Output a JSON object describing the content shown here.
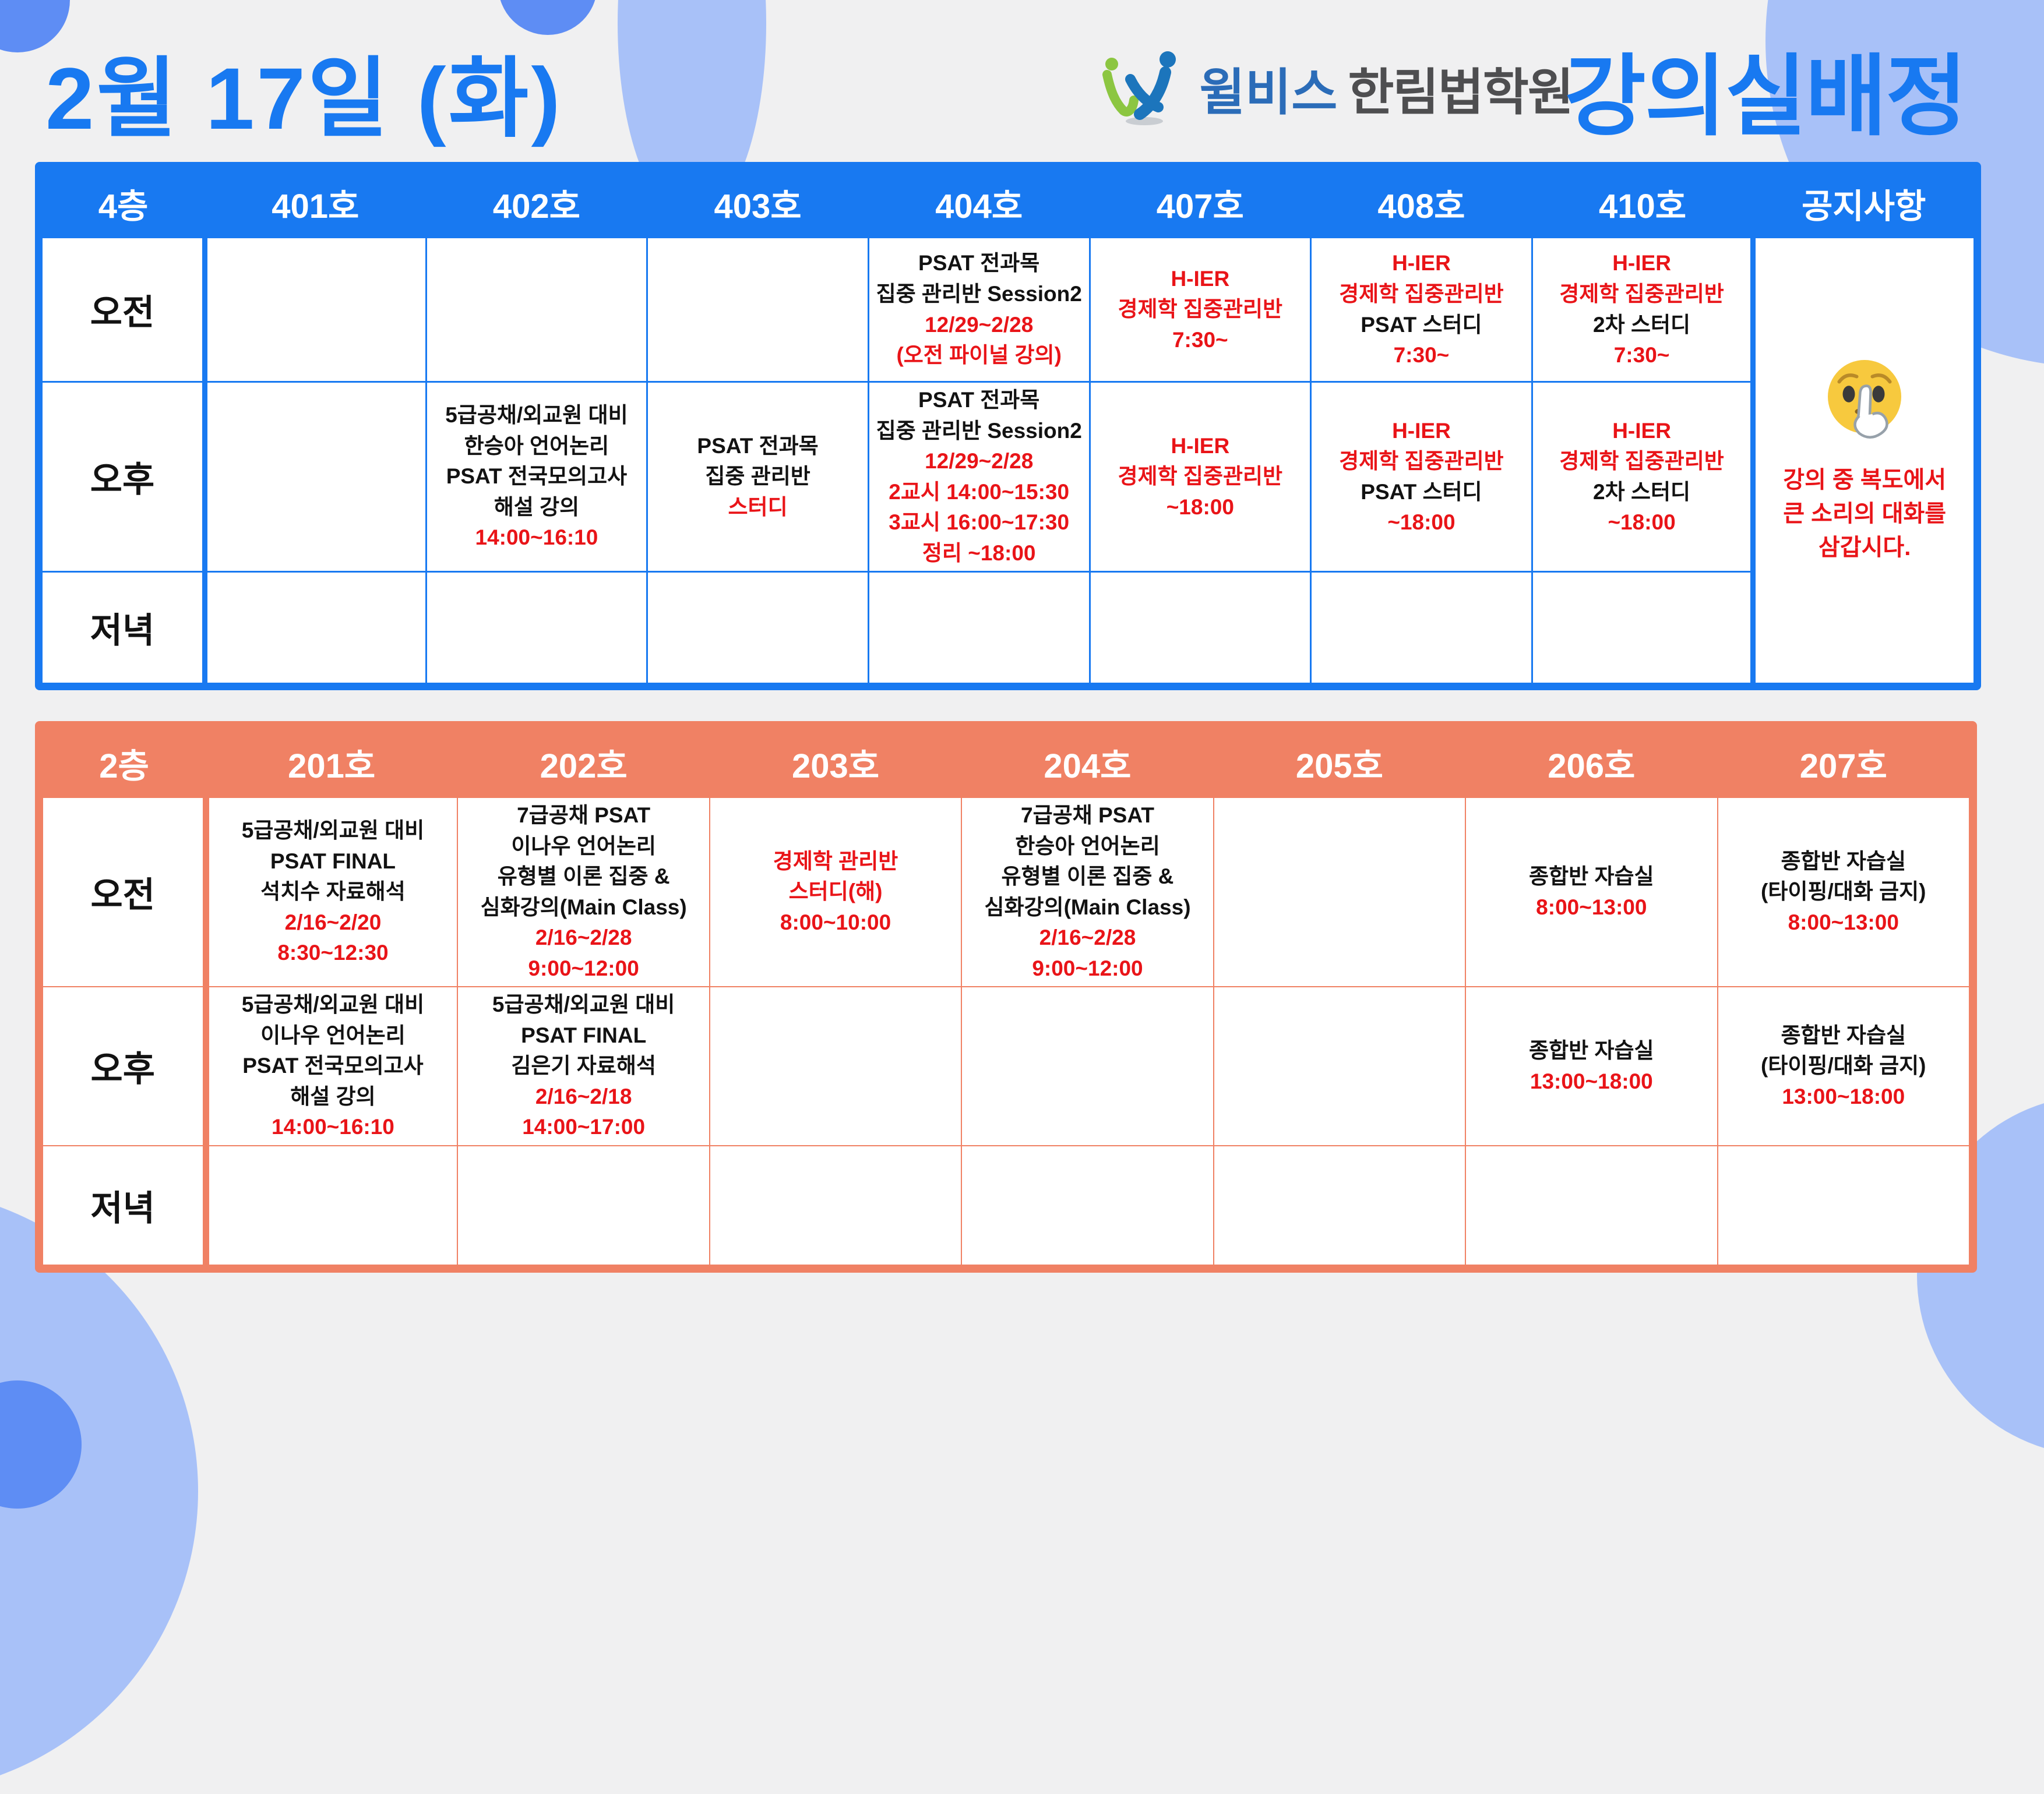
{
  "header": {
    "date_title": "2월 17일 (화)",
    "brand_primary": "윌비스",
    "brand_secondary": "한림법학원",
    "page_heading": "강의실배정"
  },
  "colors": {
    "blue": "#1879F1",
    "salmon": "#F08164",
    "red": "#E91418",
    "periwinkle": "#A8C1F8",
    "circle_blue": "#5E8DF4",
    "background": "#F0F0F1"
  },
  "row_labels": {
    "am": "오전",
    "pm": "오후",
    "eve": "저녁"
  },
  "floors": [
    {
      "key": "4f",
      "label": "4층",
      "theme": "blue",
      "rooms": [
        "401호",
        "402호",
        "403호",
        "404호",
        "407호",
        "408호",
        "410호"
      ],
      "extra_column": "공지사항",
      "notice": {
        "icon": "shushing-face",
        "lines": [
          "강의 중 복도에서",
          "큰 소리의 대화를",
          "삼갑시다."
        ]
      },
      "schedule": {
        "am": {
          "404호": [
            {
              "text": "PSAT 전과목",
              "color": "black"
            },
            {
              "text": "집중 관리반 Session2",
              "color": "black"
            },
            {
              "text": "12/29~2/28",
              "color": "red"
            },
            {
              "text": "(오전 파이널 강의)",
              "color": "red"
            }
          ],
          "407호": [
            {
              "text": "H-IER",
              "color": "red"
            },
            {
              "text": "경제학 집중관리반",
              "color": "red"
            },
            {
              "text": "7:30~",
              "color": "red"
            }
          ],
          "408호": [
            {
              "text": "H-IER",
              "color": "red"
            },
            {
              "text": "경제학 집중관리반",
              "color": "red"
            },
            {
              "text": "PSAT 스터디",
              "color": "black"
            },
            {
              "text": "7:30~",
              "color": "red"
            }
          ],
          "410호": [
            {
              "text": "H-IER",
              "color": "red"
            },
            {
              "text": "경제학 집중관리반",
              "color": "red"
            },
            {
              "text": "2차 스터디",
              "color": "black"
            },
            {
              "text": "7:30~",
              "color": "red"
            }
          ]
        },
        "pm": {
          "402호": [
            {
              "text": "5급공채/외교원 대비",
              "color": "black"
            },
            {
              "text": "한승아 언어논리",
              "color": "black"
            },
            {
              "text": "PSAT 전국모의고사",
              "color": "black"
            },
            {
              "text": "해설 강의",
              "color": "black"
            },
            {
              "text": "14:00~16:10",
              "color": "red"
            }
          ],
          "403호": [
            {
              "text": "PSAT 전과목",
              "color": "black"
            },
            {
              "text": "집중 관리반",
              "color": "black"
            },
            {
              "text": "스터디",
              "color": "red"
            }
          ],
          "404호": [
            {
              "text": "PSAT 전과목",
              "color": "black"
            },
            {
              "text": "집중 관리반 Session2",
              "color": "black"
            },
            {
              "text": "12/29~2/28",
              "color": "red"
            },
            {
              "text": "2교시 14:00~15:30",
              "color": "red"
            },
            {
              "text": "3교시 16:00~17:30",
              "color": "red"
            },
            {
              "text": "정리 ~18:00",
              "color": "red"
            }
          ],
          "407호": [
            {
              "text": "H-IER",
              "color": "red"
            },
            {
              "text": "경제학 집중관리반",
              "color": "red"
            },
            {
              "text": "~18:00",
              "color": "red"
            }
          ],
          "408호": [
            {
              "text": "H-IER",
              "color": "red"
            },
            {
              "text": "경제학 집중관리반",
              "color": "red"
            },
            {
              "text": "PSAT 스터디",
              "color": "black"
            },
            {
              "text": "~18:00",
              "color": "red"
            }
          ],
          "410호": [
            {
              "text": "H-IER",
              "color": "red"
            },
            {
              "text": "경제학 집중관리반",
              "color": "red"
            },
            {
              "text": "2차 스터디",
              "color": "black"
            },
            {
              "text": "~18:00",
              "color": "red"
            }
          ]
        },
        "eve": {}
      }
    },
    {
      "key": "2f",
      "label": "2층",
      "theme": "salmon",
      "rooms": [
        "201호",
        "202호",
        "203호",
        "204호",
        "205호",
        "206호",
        "207호"
      ],
      "extra_column": null,
      "notice": null,
      "schedule": {
        "am": {
          "201호": [
            {
              "text": "5급공채/외교원 대비",
              "color": "black"
            },
            {
              "text": "PSAT FINAL",
              "color": "black"
            },
            {
              "text": "석치수 자료해석",
              "color": "black"
            },
            {
              "text": "2/16~2/20",
              "color": "red"
            },
            {
              "text": "8:30~12:30",
              "color": "red"
            }
          ],
          "202호": [
            {
              "text": "7급공채 PSAT",
              "color": "black"
            },
            {
              "text": "이나우 언어논리",
              "color": "black"
            },
            {
              "text": "유형별 이론 집중 &",
              "color": "black"
            },
            {
              "text": "심화강의(Main Class)",
              "color": "black"
            },
            {
              "text": "2/16~2/28",
              "color": "red"
            },
            {
              "text": "9:00~12:00",
              "color": "red"
            }
          ],
          "203호": [
            {
              "text": "경제학 관리반",
              "color": "red"
            },
            {
              "text": "스터디(해)",
              "color": "red"
            },
            {
              "text": "8:00~10:00",
              "color": "red"
            }
          ],
          "204호": [
            {
              "text": "7급공채 PSAT",
              "color": "black"
            },
            {
              "text": "한승아 언어논리",
              "color": "black"
            },
            {
              "text": "유형별 이론 집중 &",
              "color": "black"
            },
            {
              "text": "심화강의(Main Class)",
              "color": "black"
            },
            {
              "text": "2/16~2/28",
              "color": "red"
            },
            {
              "text": "9:00~12:00",
              "color": "red"
            }
          ],
          "206호": [
            {
              "text": "종합반 자습실",
              "color": "black"
            },
            {
              "text": "8:00~13:00",
              "color": "red"
            }
          ],
          "207호": [
            {
              "text": "종합반 자습실",
              "color": "black"
            },
            {
              "text": "(타이핑/대화 금지)",
              "color": "black"
            },
            {
              "text": "8:00~13:00",
              "color": "red"
            }
          ]
        },
        "pm": {
          "201호": [
            {
              "text": "5급공채/외교원 대비",
              "color": "black"
            },
            {
              "text": "이나우 언어논리",
              "color": "black"
            },
            {
              "text": "PSAT 전국모의고사",
              "color": "black"
            },
            {
              "text": "해설 강의",
              "color": "black"
            },
            {
              "text": "14:00~16:10",
              "color": "red"
            }
          ],
          "202호": [
            {
              "text": "5급공채/외교원 대비",
              "color": "black"
            },
            {
              "text": "PSAT FINAL",
              "color": "black"
            },
            {
              "text": "김은기 자료해석",
              "color": "black"
            },
            {
              "text": "2/16~2/18",
              "color": "red"
            },
            {
              "text": "14:00~17:00",
              "color": "red"
            }
          ],
          "206호": [
            {
              "text": "종합반 자습실",
              "color": "black"
            },
            {
              "text": "13:00~18:00",
              "color": "red"
            }
          ],
          "207호": [
            {
              "text": "종합반 자습실",
              "color": "black"
            },
            {
              "text": "(타이핑/대화 금지)",
              "color": "black"
            },
            {
              "text": "13:00~18:00",
              "color": "red"
            }
          ]
        },
        "eve": {}
      }
    }
  ]
}
